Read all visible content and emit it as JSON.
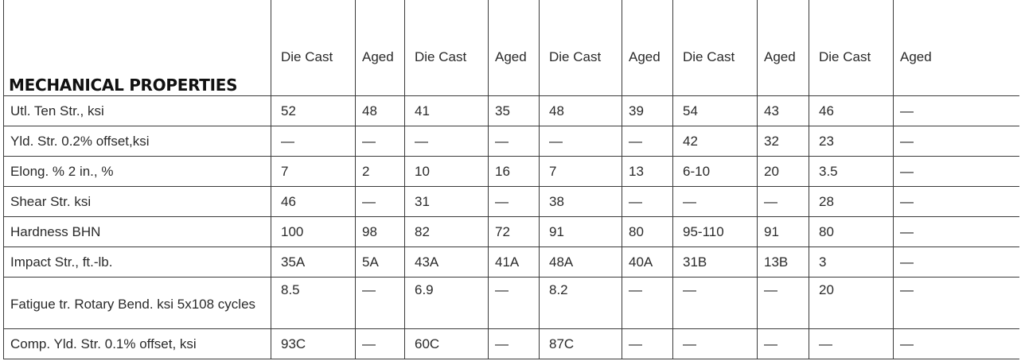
{
  "table": {
    "title": "MECHANICAL PROPERTIES",
    "column_headers": [
      "Die Cast",
      "Aged",
      "Die Cast",
      "Aged",
      "Die Cast",
      "Aged",
      "Die Cast",
      "Aged",
      "Die Cast",
      "Aged"
    ],
    "rows": [
      {
        "property": "Utl. Ten Str., ksi",
        "values": [
          "52",
          "48",
          "41",
          "35",
          "48",
          "39",
          "54",
          "43",
          "46",
          "—"
        ]
      },
      {
        "property": "Yld. Str. 0.2% offset,ksi",
        "values": [
          "—",
          "—",
          "—",
          "—",
          "—",
          "—",
          "42",
          "32",
          "23",
          "—"
        ]
      },
      {
        "property": "Elong. % 2 in., %",
        "values": [
          "7",
          "2",
          "10",
          "16",
          "7",
          "13",
          "6-10",
          "20",
          "3.5",
          "—"
        ]
      },
      {
        "property": "Shear Str. ksi",
        "values": [
          "46",
          "—",
          "31",
          "—",
          "38",
          "—",
          "—",
          "—",
          "28",
          "—"
        ]
      },
      {
        "property": "Hardness BHN",
        "values": [
          "100",
          "98",
          "82",
          "72",
          "91",
          "80",
          "95-110",
          "91",
          "80",
          "—"
        ]
      },
      {
        "property": "Impact Str., ft.-lb.",
        "values": [
          "35A",
          "5A",
          "43A",
          "41A",
          "48A",
          "40A",
          "31B",
          "13B",
          "3",
          "—"
        ]
      },
      {
        "property": "Fatigue tr. Rotary Bend. ksi 5x108 cycles",
        "values": [
          "8.5",
          "—",
          "6.9",
          "—",
          "8.2",
          "—",
          "—",
          "—",
          "20",
          "—"
        ]
      },
      {
        "property": "Comp. Yld. Str. 0.1% offset, ksi",
        "values": [
          "93C",
          "—",
          "60C",
          "—",
          "87C",
          "—",
          "—",
          "—",
          "—",
          "—"
        ]
      }
    ]
  }
}
